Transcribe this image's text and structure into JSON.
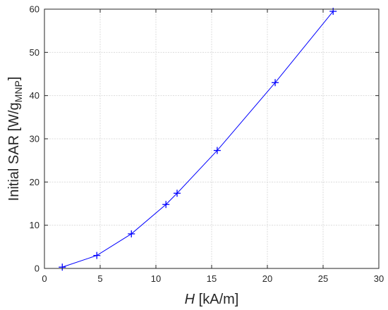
{
  "chart_data": {
    "type": "line",
    "title": "",
    "xlabel_italic": "H",
    "xlabel_rest": " [kA/m]",
    "ylabel_main": "Initial SAR [W/g",
    "ylabel_sub": "MNP",
    "ylabel_end": "]",
    "xlim": [
      0,
      30
    ],
    "ylim": [
      0,
      60
    ],
    "xticks": [
      0,
      5,
      10,
      15,
      20,
      25,
      30
    ],
    "yticks": [
      0,
      10,
      20,
      30,
      40,
      50,
      60
    ],
    "grid": true,
    "marker": "+",
    "color": "#0000ff",
    "x": [
      1.6,
      4.7,
      7.8,
      10.9,
      11.9,
      15.5,
      20.7,
      25.9
    ],
    "y": [
      0.3,
      3.0,
      8.0,
      14.8,
      17.4,
      27.3,
      43.0,
      59.5
    ]
  }
}
